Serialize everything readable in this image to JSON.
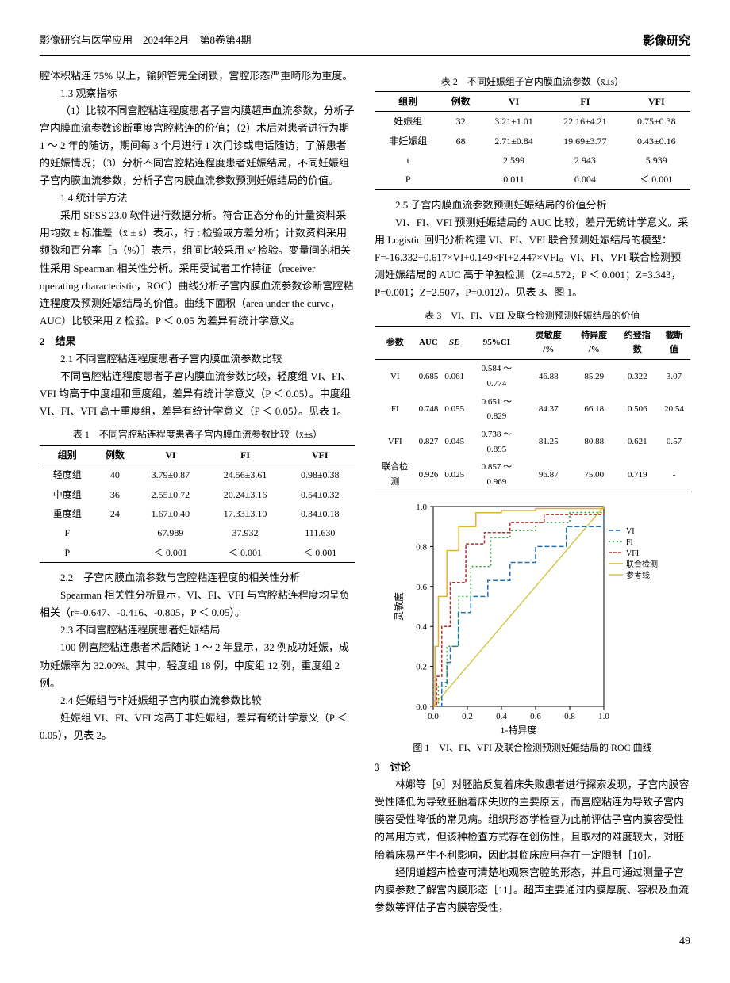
{
  "header": {
    "journal": "影像研究与医学应用　2024年2月　第8卷第4期",
    "section": "影像研究"
  },
  "left": {
    "p0": "腔体积粘连 75% 以上，输卵管完全闭锁，宫腔形态严重畸形为重度。",
    "s13_head": "1.3 观察指标",
    "s13_body": "（1）比较不同宫腔粘连程度患者子宫内膜超声血流参数，分析子宫内膜血流参数诊断重度宫腔粘连的价值；（2）术后对患者进行为期 1 ～ 2 年的随访，期间每 3 个月进行 1 次门诊或电话随访，了解患者的妊娠情况；（3）分析不同宫腔粘连程度患者妊娠结局，不同妊娠组子宫内膜血流参数，分析子宫内膜血流参数预测妊娠结局的价值。",
    "s14_head": "1.4 统计学方法",
    "s14_body": "采用 SPSS  23.0 软件进行数据分析。符合正态分布的计量资料采用均数 ± 标准差（x̄ ± s）表示，行 t 检验或方差分析；计数资料采用频数和百分率［n（%）］表示，组间比较采用 x² 检验。变量间的相关性采用 Spearman 相关性分析。采用受试者工作特征（receiver operating characteristic，ROC）曲线分析子宫内膜血流参数诊断宫腔粘连程度及预测妊娠结局的价值。曲线下面积（area under the curve，AUC）比较采用 Z 检验。P ＜ 0.05 为差异有统计学意义。",
    "s2_head": "2　结果",
    "s21_head": "2.1 不同宫腔粘连程度患者子宫内膜血流参数比较",
    "s21_body": "不同宫腔粘连程度患者子宫内膜血流参数比较，轻度组 VI、FI、VFI 均高于中度组和重度组，差异有统计学意义（P ＜ 0.05）。中度组 VI、FI、VFI 高于重度组，差异有统计学意义（P ＜ 0.05）。见表 1。",
    "table1_caption": "表 1　不同宫腔粘连程度患者子宫内膜血流参数比较（x̄±s）",
    "table1": {
      "cols": [
        "组别",
        "例数",
        "VI",
        "FI",
        "VFI"
      ],
      "rows": [
        [
          "轻度组",
          "40",
          "3.79±0.87",
          "24.56±3.61",
          "0.98±0.38"
        ],
        [
          "中度组",
          "36",
          "2.55±0.72",
          "20.24±3.16",
          "0.54±0.32"
        ],
        [
          "重度组",
          "24",
          "1.67±0.40",
          "17.33±3.10",
          "0.34±0.18"
        ],
        [
          "F",
          "",
          "67.989",
          "37.932",
          "111.630"
        ],
        [
          "P",
          "",
          "＜ 0.001",
          "＜ 0.001",
          "＜ 0.001"
        ]
      ]
    },
    "s22_head": "2.2　子宫内膜血流参数与宫腔粘连程度的相关性分析",
    "s22_body": "Spearman 相关性分析显示，VI、FI、VFI 与宫腔粘连程度均呈负相关（r=-0.647、-0.416、-0.805，P ＜ 0.05）。",
    "s23_head": "2.3 不同宫腔粘连程度患者妊娠结局",
    "s23_body": "100 例宫腔粘连患者术后随访 1 ～ 2 年显示，32 例成功妊娠，成功妊娠率为 32.00%。其中，轻度组 18 例，中度组 12 例，重度组 2 例。",
    "s24_head": "2.4 妊娠组与非妊娠组子宫内膜血流参数比较",
    "s24_body": "妊娠组 VI、FI、VFI 均高于非妊娠组，差异有统计学意义（P ＜ 0.05），见表 2。"
  },
  "right": {
    "table2_caption": "表 2　不同妊娠组子宫内膜血流参数（x̄±s）",
    "table2": {
      "cols": [
        "组别",
        "例数",
        "VI",
        "FI",
        "VFI"
      ],
      "rows": [
        [
          "妊娠组",
          "32",
          "3.21±1.01",
          "22.16±4.21",
          "0.75±0.38"
        ],
        [
          "非妊娠组",
          "68",
          "2.71±0.84",
          "19.69±3.77",
          "0.43±0.16"
        ],
        [
          "t",
          "",
          "2.599",
          "2.943",
          "5.939"
        ],
        [
          "P",
          "",
          "0.011",
          "0.004",
          "＜ 0.001"
        ]
      ]
    },
    "s25_head": "2.5 子宫内膜血流参数预测妊娠结局的价值分析",
    "s25_body": "VI、FI、VFI 预测妊娠结局的 AUC 比较，差异无统计学意义。采用 Logistic 回归分析构建 VI、FI、VFI 联合预测妊娠结局的模型：F=-16.332+0.617×VI+0.149×FI+2.447×VFI。VI、FI、VFI 联合检测预测妊娠结局的 AUC 高于单独检测（Z=4.572，P ＜ 0.001；Z=3.343，P=0.001；Z=2.507，P=0.012）。见表 3、图 1。",
    "table3_caption": "表 3　VI、FI、VEI 及联合检测预测妊娠结局的价值",
    "table3": {
      "cols": [
        "参数",
        "AUC",
        "SE",
        "95%CI",
        "灵敏度 /%",
        "特异度 /%",
        "约登指数",
        "截断值"
      ],
      "rows": [
        [
          "VI",
          "0.685",
          "0.061",
          "0.584 ～ 0.774",
          "46.88",
          "85.29",
          "0.322",
          "3.07"
        ],
        [
          "FI",
          "0.748",
          "0.055",
          "0.651 ～ 0.829",
          "84.37",
          "66.18",
          "0.506",
          "20.54"
        ],
        [
          "VFI",
          "0.827",
          "0.045",
          "0.738 ～ 0.895",
          "81.25",
          "80.88",
          "0.621",
          "0.57"
        ],
        [
          "联合检测",
          "0.926",
          "0.025",
          "0.857 ～ 0.969",
          "96.87",
          "75.00",
          "0.719",
          "-"
        ]
      ]
    },
    "fig1_caption": "图 1　VI、FI、VFI 及联合检测预测妊娠结局的 ROC 曲线",
    "roc": {
      "xlabel": "1-特异度",
      "ylabel": "灵敏度",
      "xticks": [
        "0.0",
        "0.2",
        "0.4",
        "0.6",
        "0.8",
        "1.0"
      ],
      "yticks": [
        "0.0",
        "0.2",
        "0.4",
        "0.6",
        "0.8",
        "1.0"
      ],
      "ref_color": "#d4c84a",
      "curves": [
        {
          "name": "VI",
          "color": "#1f6fb3",
          "dash": "6 3",
          "pts": [
            [
              0,
              0
            ],
            [
              0.05,
              0.12
            ],
            [
              0.08,
              0.22
            ],
            [
              0.1,
              0.3
            ],
            [
              0.147,
              0.469
            ],
            [
              0.22,
              0.55
            ],
            [
              0.32,
              0.63
            ],
            [
              0.45,
              0.72
            ],
            [
              0.6,
              0.8
            ],
            [
              0.78,
              0.9
            ],
            [
              1,
              1
            ]
          ]
        },
        {
          "name": "FI",
          "color": "#2a9d3a",
          "dash": "2 3",
          "pts": [
            [
              0,
              0
            ],
            [
              0.03,
              0.1
            ],
            [
              0.08,
              0.3
            ],
            [
              0.15,
              0.55
            ],
            [
              0.22,
              0.7
            ],
            [
              0.338,
              0.844
            ],
            [
              0.45,
              0.88
            ],
            [
              0.6,
              0.92
            ],
            [
              0.8,
              0.97
            ],
            [
              1,
              1
            ]
          ]
        },
        {
          "name": "VFI",
          "color": "#b03030",
          "dash": "4 2",
          "pts": [
            [
              0,
              0
            ],
            [
              0.02,
              0.15
            ],
            [
              0.05,
              0.4
            ],
            [
              0.1,
              0.62
            ],
            [
              0.191,
              0.813
            ],
            [
              0.3,
              0.87
            ],
            [
              0.45,
              0.92
            ],
            [
              0.65,
              0.96
            ],
            [
              1,
              1
            ]
          ]
        },
        {
          "name": "联合检测",
          "color": "#e0b030",
          "dash": "",
          "pts": [
            [
              0,
              0
            ],
            [
              0.01,
              0.3
            ],
            [
              0.03,
              0.55
            ],
            [
              0.08,
              0.78
            ],
            [
              0.15,
              0.9
            ],
            [
              0.25,
              0.969
            ],
            [
              0.4,
              0.98
            ],
            [
              0.6,
              0.99
            ],
            [
              1,
              1
            ]
          ]
        }
      ],
      "legend": [
        "VI",
        "FI",
        "VFI",
        "联合检测",
        "参考线"
      ]
    },
    "s3_head": "3　讨论",
    "s3_body1": "林娜等［9］对胚胎反复着床失败患者进行探索发现，子宫内膜容受性降低为导致胚胎着床失败的主要原因，而宫腔粘连为导致子宫内膜容受性降低的常见病。组织形态学检查为此前评估子宫内膜容受性的常用方式，但该种检查方式存在创伤性，且取材的难度较大，对胚胎着床易产生不利影响，因此其临床应用存在一定限制［10］。",
    "s3_body2": "经阴道超声检查可清楚地观察宫腔的形态，并且可通过测量子宫内膜参数了解宫内膜形态［11］。超声主要通过内膜厚度、容积及血流参数等评估子宫内膜容受性，"
  },
  "page_num": "49"
}
